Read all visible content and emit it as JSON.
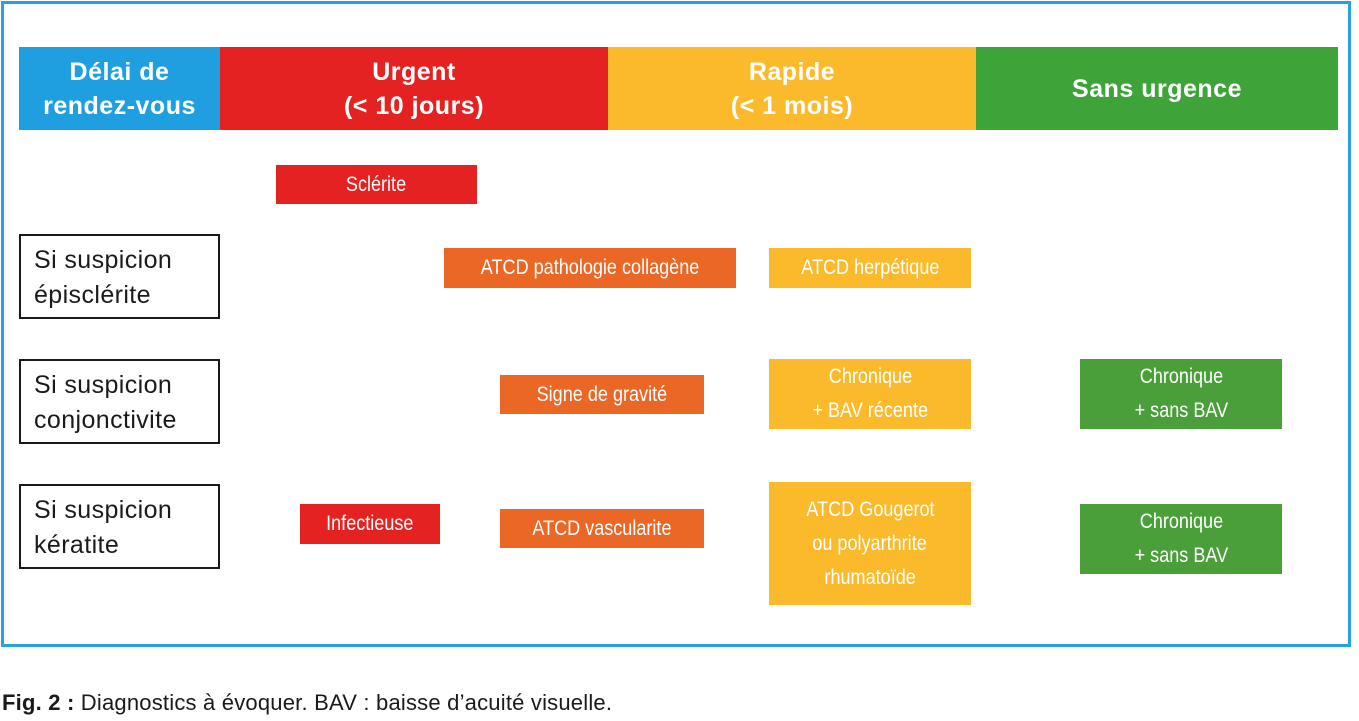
{
  "header": {
    "col0": {
      "line1": "Délai de",
      "line2": "rendez-vous",
      "color": "#1f9fe0"
    },
    "col1": {
      "line1": "Urgent",
      "line2": "(< 10 jours)",
      "color": "#e42221"
    },
    "col2": {
      "line1": "Rapide",
      "line2": "(< 1 mois)",
      "color": "#fbba2b"
    },
    "col3": {
      "line1": "Sans urgence",
      "color": "#3ea43a"
    }
  },
  "rows": {
    "episclerite": {
      "line1": "Si suspicion",
      "line2": "épisclérite"
    },
    "conjonctivite": {
      "line1": "Si suspicion",
      "line2": "conjonctivite"
    },
    "keratite": {
      "line1": "Si suspicion",
      "line2": "kératite"
    }
  },
  "boxes": {
    "sclerite": "Sclérite",
    "atcd_collagene": "ATCD pathologie collagène",
    "atcd_herpetique": "ATCD herpétique",
    "signe_gravite": "Signe de gravité",
    "chronique_bav_recente": {
      "line1": "Chronique",
      "line2": "+ BAV récente"
    },
    "chronique_sans_bav_1": {
      "line1": "Chronique",
      "line2": "+ sans BAV"
    },
    "infectieuse": "Infectieuse",
    "atcd_vascularite": "ATCD vascularite",
    "atcd_gougerot": {
      "line1": "ATCD Gougerot",
      "line2": "ou polyarthrite",
      "line3": "rhumatoïde"
    },
    "chronique_sans_bav_2": {
      "line1": "Chronique",
      "line2": "+ sans BAV"
    }
  },
  "colors": {
    "frame_border": "#29a3e0",
    "urgent_box": "#e42221",
    "orange_box": "#eb6726",
    "rapide_box": "#fbba2b",
    "sans_urgence_box": "#4a9f3a"
  },
  "caption": {
    "label": "Fig. 2 :",
    "text": " Diagnostics à évoquer. BAV : baisse d’acuité visuelle."
  }
}
